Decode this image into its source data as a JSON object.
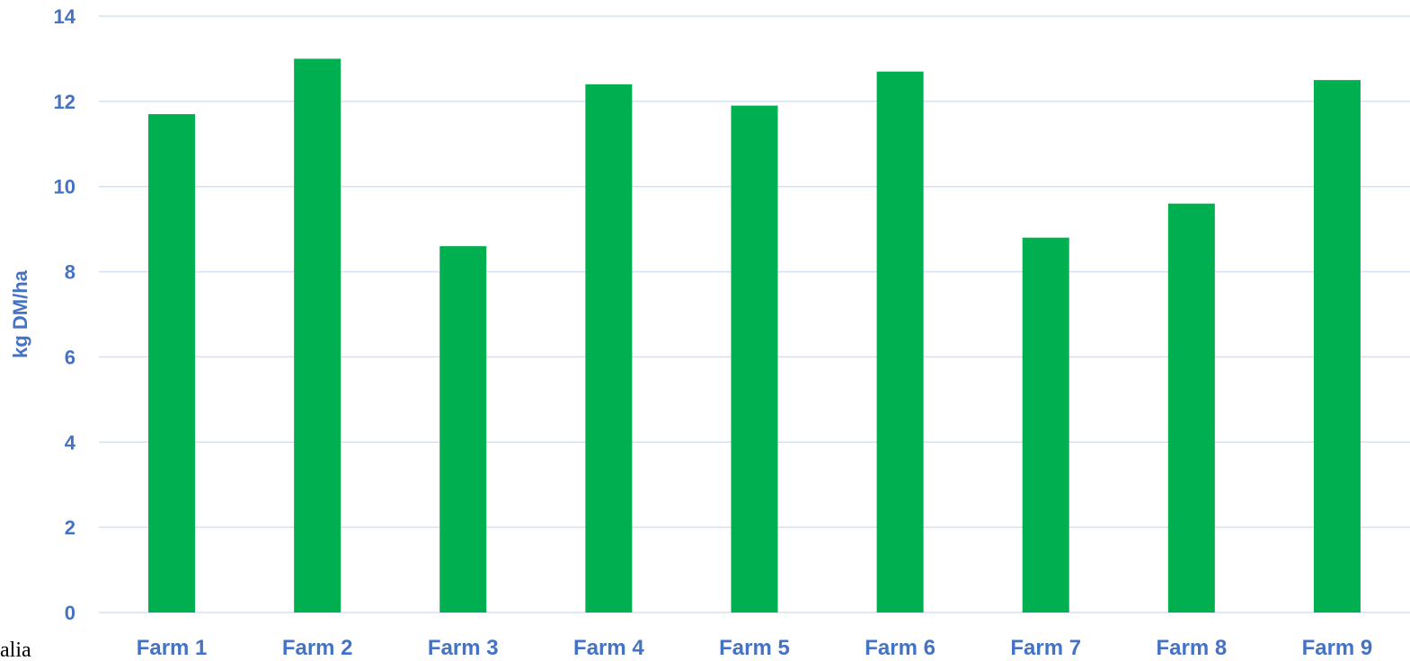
{
  "chart_data": {
    "type": "bar",
    "categories": [
      "Farm 1",
      "Farm 2",
      "Farm 3",
      "Farm 4",
      "Farm 5",
      "Farm 6",
      "Farm 7",
      "Farm 8",
      "Farm 9"
    ],
    "values": [
      11.7,
      13.0,
      8.6,
      12.4,
      11.9,
      12.7,
      8.8,
      9.6,
      12.5
    ],
    "title": "",
    "xlabel": "",
    "ylabel": "kg DM/ha",
    "ylim": [
      0,
      14
    ],
    "yticks": [
      0,
      2,
      4,
      6,
      8,
      10,
      12,
      14
    ],
    "grid": true,
    "legend": "none",
    "colors": {
      "bar": "#00B050",
      "axis_text": "#4472C4",
      "grid": "#D6E0F0"
    }
  },
  "stray_text": "alia"
}
